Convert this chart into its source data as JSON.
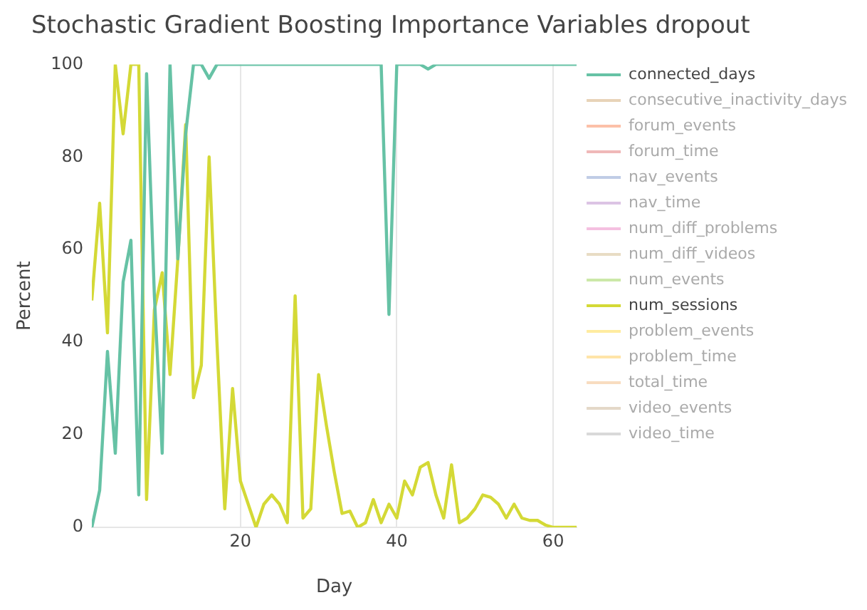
{
  "chart_data": {
    "type": "line",
    "title": "Stochastic Gradient Boosting Importance Variables dropout",
    "xlabel": "Day",
    "ylabel": "Percent",
    "x": [
      1,
      2,
      3,
      4,
      5,
      6,
      7,
      8,
      9,
      10,
      11,
      12,
      13,
      14,
      15,
      16,
      17,
      18,
      19,
      20,
      21,
      22,
      23,
      24,
      25,
      26,
      27,
      28,
      29,
      30,
      31,
      32,
      33,
      34,
      35,
      36,
      37,
      38,
      39,
      40,
      41,
      42,
      43,
      44,
      45,
      46,
      47,
      48,
      49,
      50,
      51,
      52,
      53,
      54,
      55,
      56,
      57,
      58,
      59,
      60,
      61,
      62,
      63
    ],
    "xlim": [
      1,
      63
    ],
    "xticks": [
      20,
      40,
      60
    ],
    "ylim": [
      0,
      100
    ],
    "yticks": [
      0,
      20,
      40,
      60,
      80,
      100
    ],
    "grid": "x",
    "legend": "top right",
    "marker": "none",
    "line_style": "solid",
    "series": [
      {
        "name": "connected_days",
        "color": "#66c2a5",
        "values": [
          0,
          8,
          38,
          16,
          53,
          62,
          7,
          98,
          50,
          16,
          100,
          58,
          85,
          100,
          100,
          97,
          100,
          100,
          100,
          100,
          100,
          100,
          100,
          100,
          100,
          100,
          100,
          100,
          100,
          100,
          100,
          100,
          100,
          100,
          100,
          100,
          100,
          100,
          46,
          100,
          100,
          100,
          100,
          99,
          100,
          100,
          100,
          100,
          100,
          100,
          100,
          100,
          100,
          100,
          100,
          100,
          100,
          100,
          100,
          100,
          100,
          100,
          100
        ]
      },
      {
        "name": "consecutive_inactivity_days",
        "color": "#e8d3b8",
        "values": [
          null,
          null,
          null,
          null,
          null,
          null,
          null,
          null,
          null,
          null,
          null,
          null,
          null,
          null,
          null,
          null,
          null,
          null,
          null,
          null,
          null,
          null,
          null,
          null,
          null,
          null,
          null,
          null,
          null,
          null,
          null,
          null,
          null,
          null,
          null,
          null,
          null,
          null,
          null,
          null,
          null,
          null,
          null,
          null,
          null,
          null,
          null,
          null,
          null,
          null,
          null,
          null,
          null,
          null,
          null,
          null,
          null,
          null,
          null,
          null,
          null,
          null,
          null
        ]
      },
      {
        "name": "forum_events",
        "color": "#fcc0a8",
        "values": [
          null,
          null,
          null,
          null,
          null,
          null,
          null,
          null,
          null,
          null,
          null,
          null,
          null,
          null,
          null,
          null,
          null,
          null,
          null,
          null,
          null,
          null,
          null,
          null,
          null,
          null,
          null,
          null,
          null,
          null,
          null,
          null,
          null,
          null,
          null,
          null,
          null,
          null,
          null,
          null,
          null,
          null,
          null,
          null,
          null,
          null,
          null,
          null,
          null,
          null,
          null,
          null,
          null,
          null,
          null,
          null,
          null,
          null,
          null,
          null,
          null,
          null,
          null
        ]
      },
      {
        "name": "forum_time",
        "color": "#f0b8b8",
        "values": [
          null,
          null,
          null,
          null,
          null,
          null,
          null,
          null,
          null,
          null,
          null,
          null,
          null,
          null,
          null,
          null,
          null,
          null,
          null,
          null,
          null,
          null,
          null,
          null,
          null,
          null,
          null,
          null,
          null,
          null,
          null,
          null,
          null,
          null,
          null,
          null,
          null,
          null,
          null,
          null,
          null,
          null,
          null,
          null,
          null,
          null,
          null,
          null,
          null,
          null,
          null,
          null,
          null,
          null,
          null,
          null,
          null,
          null,
          null,
          null,
          null,
          null,
          null
        ]
      },
      {
        "name": "nav_events",
        "color": "#c0cce6",
        "values": [
          null,
          null,
          null,
          null,
          null,
          null,
          null,
          null,
          null,
          null,
          null,
          null,
          null,
          null,
          null,
          null,
          null,
          null,
          null,
          null,
          null,
          null,
          null,
          null,
          null,
          null,
          null,
          null,
          null,
          null,
          null,
          null,
          null,
          null,
          null,
          null,
          null,
          null,
          null,
          null,
          null,
          null,
          null,
          null,
          null,
          null,
          null,
          null,
          null,
          null,
          null,
          null,
          null,
          null,
          null,
          null,
          null,
          null,
          null,
          null,
          null,
          null,
          null
        ]
      },
      {
        "name": "nav_time",
        "color": "#dcc4e4",
        "values": [
          null,
          null,
          null,
          null,
          null,
          null,
          null,
          null,
          null,
          null,
          null,
          null,
          null,
          null,
          null,
          null,
          null,
          null,
          null,
          null,
          null,
          null,
          null,
          null,
          null,
          null,
          null,
          null,
          null,
          null,
          null,
          null,
          null,
          null,
          null,
          null,
          null,
          null,
          null,
          null,
          null,
          null,
          null,
          null,
          null,
          null,
          null,
          null,
          null,
          null,
          null,
          null,
          null,
          null,
          null,
          null,
          null,
          null,
          null,
          null,
          null,
          null,
          null
        ]
      },
      {
        "name": "num_diff_problems",
        "color": "#f4c0e0",
        "values": [
          null,
          null,
          null,
          null,
          null,
          null,
          null,
          null,
          null,
          null,
          null,
          null,
          null,
          null,
          null,
          null,
          null,
          null,
          null,
          null,
          null,
          null,
          null,
          null,
          null,
          null,
          null,
          null,
          null,
          null,
          null,
          null,
          null,
          null,
          null,
          null,
          null,
          null,
          null,
          null,
          null,
          null,
          null,
          null,
          null,
          null,
          null,
          null,
          null,
          null,
          null,
          null,
          null,
          null,
          null,
          null,
          null,
          null,
          null,
          null,
          null,
          null,
          null
        ]
      },
      {
        "name": "num_diff_videos",
        "color": "#e8dcc4",
        "values": [
          null,
          null,
          null,
          null,
          null,
          null,
          null,
          null,
          null,
          null,
          null,
          null,
          null,
          null,
          null,
          null,
          null,
          null,
          null,
          null,
          null,
          null,
          null,
          null,
          null,
          null,
          null,
          null,
          null,
          null,
          null,
          null,
          null,
          null,
          null,
          null,
          null,
          null,
          null,
          null,
          null,
          null,
          null,
          null,
          null,
          null,
          null,
          null,
          null,
          null,
          null,
          null,
          null,
          null,
          null,
          null,
          null,
          null,
          null,
          null,
          null,
          null,
          null
        ]
      },
      {
        "name": "num_events",
        "color": "#cce8a8",
        "values": [
          null,
          null,
          null,
          null,
          null,
          null,
          null,
          null,
          null,
          null,
          null,
          null,
          null,
          null,
          null,
          null,
          null,
          null,
          null,
          null,
          null,
          null,
          null,
          null,
          null,
          null,
          null,
          null,
          null,
          null,
          null,
          null,
          null,
          null,
          null,
          null,
          null,
          null,
          null,
          null,
          null,
          null,
          null,
          null,
          null,
          null,
          null,
          null,
          null,
          null,
          null,
          null,
          null,
          null,
          null,
          null,
          null,
          null,
          null,
          null,
          null,
          null,
          null
        ]
      },
      {
        "name": "num_sessions",
        "color": "#d4d936",
        "values": [
          49,
          70,
          42,
          100,
          85,
          100,
          100,
          6,
          47,
          55,
          33,
          58,
          87,
          28,
          35,
          80,
          40,
          4,
          30,
          10,
          5,
          0,
          5,
          7,
          5,
          1,
          50,
          2,
          4,
          33,
          22,
          12,
          3,
          3.5,
          0,
          1,
          6,
          1,
          5,
          2,
          10,
          7,
          13,
          14,
          7,
          2,
          13.5,
          1,
          2,
          4,
          7,
          6.5,
          5,
          2,
          5,
          2,
          1.5,
          1.5,
          0.5,
          0,
          0,
          0,
          0
        ]
      },
      {
        "name": "problem_events",
        "color": "#ffeca0",
        "values": [
          null,
          null,
          null,
          null,
          null,
          null,
          null,
          null,
          null,
          null,
          null,
          null,
          null,
          null,
          null,
          null,
          null,
          null,
          null,
          null,
          null,
          null,
          null,
          null,
          null,
          null,
          null,
          null,
          null,
          null,
          null,
          null,
          null,
          null,
          null,
          null,
          null,
          null,
          null,
          null,
          null,
          null,
          null,
          null,
          null,
          null,
          null,
          null,
          null,
          null,
          null,
          null,
          null,
          null,
          null,
          null,
          null,
          null,
          null,
          null,
          null,
          null,
          null
        ]
      },
      {
        "name": "problem_time",
        "color": "#ffe4a8",
        "values": [
          null,
          null,
          null,
          null,
          null,
          null,
          null,
          null,
          null,
          null,
          null,
          null,
          null,
          null,
          null,
          null,
          null,
          null,
          null,
          null,
          null,
          null,
          null,
          null,
          null,
          null,
          null,
          null,
          null,
          null,
          null,
          null,
          null,
          null,
          null,
          null,
          null,
          null,
          null,
          null,
          null,
          null,
          null,
          null,
          null,
          null,
          null,
          null,
          null,
          null,
          null,
          null,
          null,
          null,
          null,
          null,
          null,
          null,
          null,
          null,
          null,
          null,
          null
        ]
      },
      {
        "name": "total_time",
        "color": "#f8dcc0",
        "values": [
          null,
          null,
          null,
          null,
          null,
          null,
          null,
          null,
          null,
          null,
          null,
          null,
          null,
          null,
          null,
          null,
          null,
          null,
          null,
          null,
          null,
          null,
          null,
          null,
          null,
          null,
          null,
          null,
          null,
          null,
          null,
          null,
          null,
          null,
          null,
          null,
          null,
          null,
          null,
          null,
          null,
          null,
          null,
          null,
          null,
          null,
          null,
          null,
          null,
          null,
          null,
          null,
          null,
          null,
          null,
          null,
          null,
          null,
          null,
          null,
          null,
          null,
          null
        ]
      },
      {
        "name": "video_events",
        "color": "#e4d8c8",
        "values": [
          null,
          null,
          null,
          null,
          null,
          null,
          null,
          null,
          null,
          null,
          null,
          null,
          null,
          null,
          null,
          null,
          null,
          null,
          null,
          null,
          null,
          null,
          null,
          null,
          null,
          null,
          null,
          null,
          null,
          null,
          null,
          null,
          null,
          null,
          null,
          null,
          null,
          null,
          null,
          null,
          null,
          null,
          null,
          null,
          null,
          null,
          null,
          null,
          null,
          null,
          null,
          null,
          null,
          null,
          null,
          null,
          null,
          null,
          null,
          null,
          null,
          null,
          null
        ]
      },
      {
        "name": "video_time",
        "color": "#d9d9d9",
        "values": [
          null,
          null,
          null,
          null,
          null,
          null,
          null,
          null,
          null,
          null,
          null,
          null,
          null,
          null,
          null,
          null,
          null,
          null,
          null,
          null,
          null,
          null,
          null,
          null,
          null,
          null,
          null,
          null,
          null,
          null,
          null,
          null,
          null,
          null,
          null,
          null,
          null,
          null,
          null,
          null,
          null,
          null,
          null,
          null,
          null,
          null,
          null,
          null,
          null,
          null,
          null,
          null,
          null,
          null,
          null,
          null,
          null,
          null,
          null,
          null,
          null,
          null,
          null
        ]
      }
    ]
  }
}
